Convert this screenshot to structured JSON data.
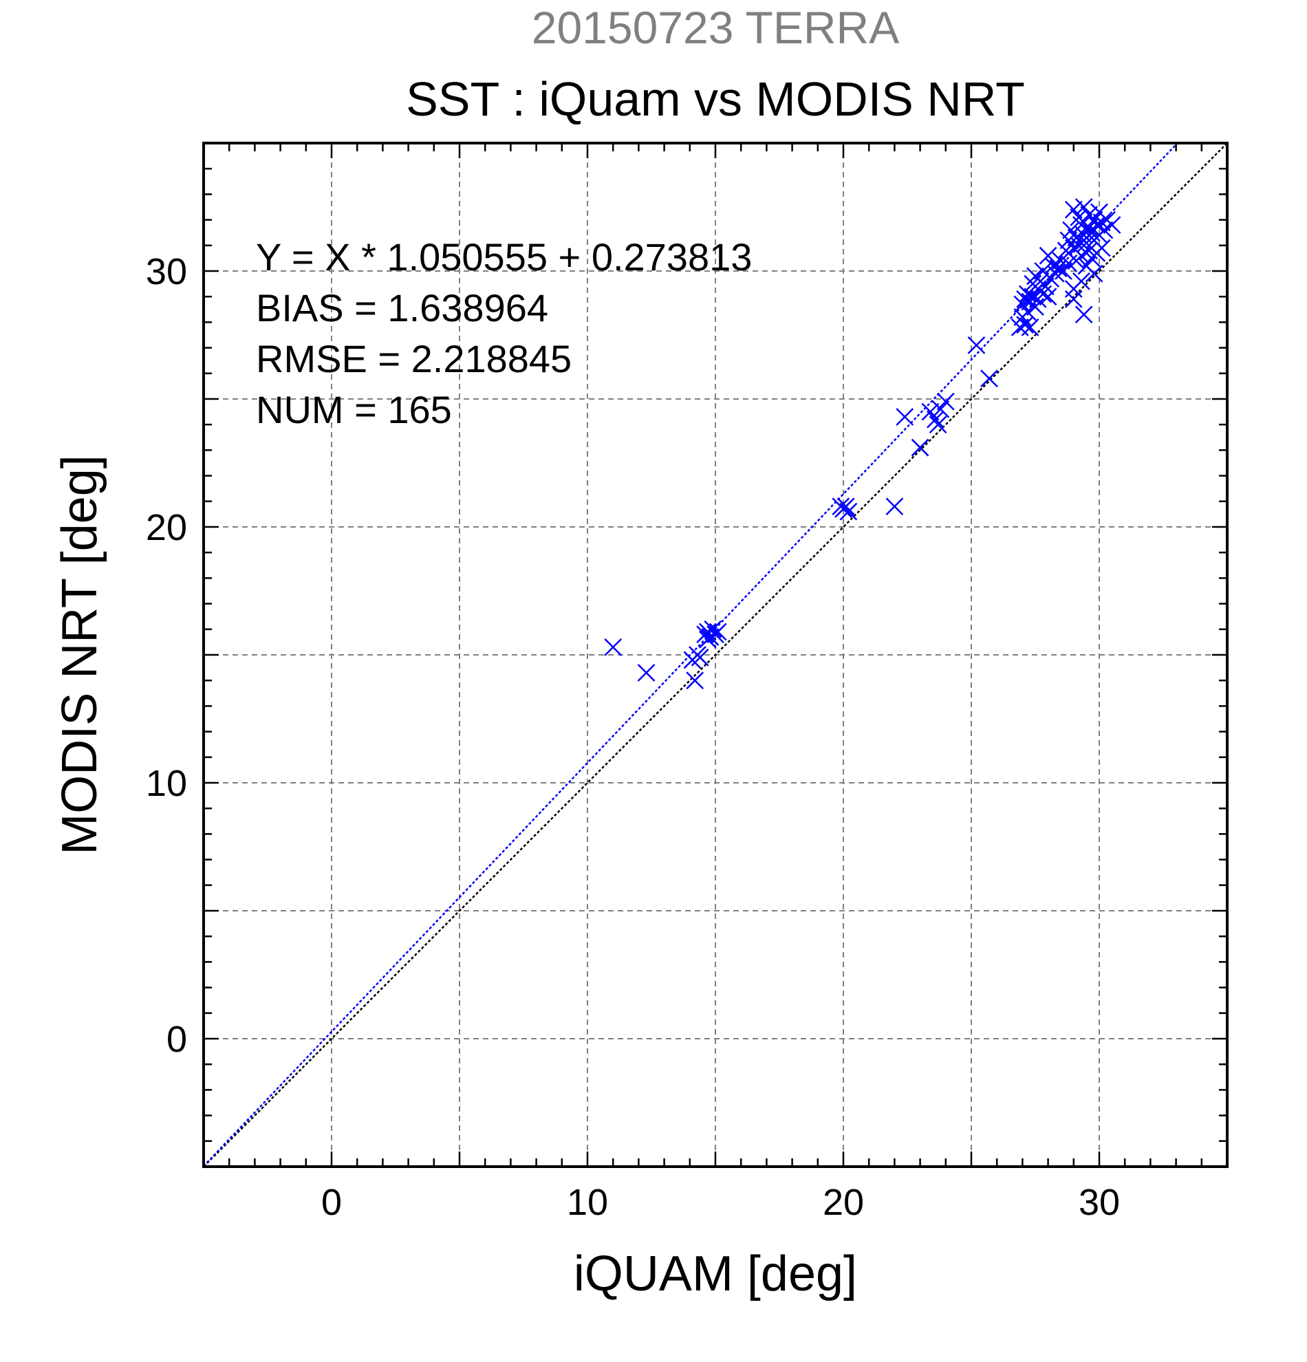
{
  "chart_data": {
    "type": "scatter",
    "title": "SST : iQuam vs MODIS NRT",
    "subtitle": "20150723 TERRA",
    "xlabel": "iQUAM [deg]",
    "ylabel": "MODIS NRT [deg]",
    "xlim": [
      -5,
      35
    ],
    "ylim": [
      -5,
      35
    ],
    "x_ticks": [
      0,
      10,
      20,
      30
    ],
    "y_ticks": [
      0,
      10,
      20,
      30
    ],
    "grid": true,
    "annotations": [
      "Y = X * 1.050555 + 0.273813",
      "BIAS = 1.638964",
      "RMSE = 2.218845",
      "NUM = 165"
    ],
    "fit_line": {
      "slope": 1.050555,
      "intercept": 0.273813
    },
    "reference_line": {
      "slope": 1,
      "intercept": 0
    },
    "colors": {
      "points": "#0000ff",
      "fit": "#0000ff",
      "reference": "#000000",
      "subtitle": "#808080"
    },
    "points": [
      [
        11.0,
        15.3
      ],
      [
        12.3,
        14.3
      ],
      [
        14.1,
        14.8
      ],
      [
        14.2,
        14.0
      ],
      [
        14.3,
        15.0
      ],
      [
        14.4,
        14.9
      ],
      [
        14.6,
        15.8
      ],
      [
        14.7,
        15.9
      ],
      [
        14.8,
        15.7
      ],
      [
        14.9,
        16.0
      ],
      [
        15.0,
        15.8
      ],
      [
        15.1,
        15.9
      ],
      [
        14.7,
        15.6
      ],
      [
        19.9,
        20.8
      ],
      [
        20.0,
        20.7
      ],
      [
        20.1,
        20.8
      ],
      [
        20.2,
        20.6
      ],
      [
        22.0,
        20.8
      ],
      [
        22.4,
        24.3
      ],
      [
        23.0,
        23.1
      ],
      [
        23.4,
        24.5
      ],
      [
        23.6,
        24.2
      ],
      [
        23.7,
        24.0
      ],
      [
        23.8,
        24.6
      ],
      [
        24.0,
        24.9
      ],
      [
        25.2,
        27.1
      ],
      [
        25.7,
        25.8
      ],
      [
        26.9,
        27.8
      ],
      [
        27.0,
        28.7
      ],
      [
        27.0,
        28.2
      ],
      [
        27.1,
        27.9
      ],
      [
        27.1,
        28.9
      ],
      [
        27.2,
        29.1
      ],
      [
        27.2,
        28.4
      ],
      [
        27.3,
        27.8
      ],
      [
        27.3,
        28.8
      ],
      [
        27.4,
        29.5
      ],
      [
        27.4,
        29.0
      ],
      [
        27.5,
        28.6
      ],
      [
        27.5,
        29.8
      ],
      [
        27.6,
        29.3
      ],
      [
        27.6,
        28.9
      ],
      [
        27.7,
        29.6
      ],
      [
        27.8,
        29.1
      ],
      [
        27.8,
        30.0
      ],
      [
        27.9,
        29.4
      ],
      [
        28.0,
        29.0
      ],
      [
        28.0,
        30.6
      ],
      [
        28.1,
        29.7
      ],
      [
        28.2,
        30.2
      ],
      [
        28.3,
        29.9
      ],
      [
        28.4,
        30.1
      ],
      [
        28.5,
        30.4
      ],
      [
        28.6,
        30.0
      ],
      [
        28.7,
        30.8
      ],
      [
        28.8,
        31.2
      ],
      [
        28.8,
        30.3
      ],
      [
        28.9,
        31.6
      ],
      [
        29.0,
        30.9
      ],
      [
        29.0,
        32.4
      ],
      [
        29.0,
        29.3
      ],
      [
        29.0,
        28.9
      ],
      [
        29.1,
        31.3
      ],
      [
        29.1,
        30.4
      ],
      [
        29.2,
        32.1
      ],
      [
        29.2,
        31.0
      ],
      [
        29.3,
        31.8
      ],
      [
        29.3,
        30.6
      ],
      [
        29.3,
        29.6
      ],
      [
        29.4,
        32.5
      ],
      [
        29.4,
        31.4
      ],
      [
        29.4,
        28.3
      ],
      [
        29.5,
        31.1
      ],
      [
        29.5,
        30.2
      ],
      [
        29.6,
        32.2
      ],
      [
        29.6,
        31.7
      ],
      [
        29.6,
        30.8
      ],
      [
        29.7,
        31.5
      ],
      [
        29.7,
        30.5
      ],
      [
        29.8,
        32.0
      ],
      [
        29.8,
        31.2
      ],
      [
        29.8,
        29.9
      ],
      [
        29.9,
        31.8
      ],
      [
        29.9,
        30.7
      ],
      [
        30.0,
        32.3
      ],
      [
        30.0,
        31.4
      ],
      [
        30.1,
        30.9
      ],
      [
        30.1,
        31.9
      ],
      [
        30.2,
        31.6
      ],
      [
        30.3,
        32.0
      ],
      [
        30.5,
        31.8
      ]
    ]
  }
}
